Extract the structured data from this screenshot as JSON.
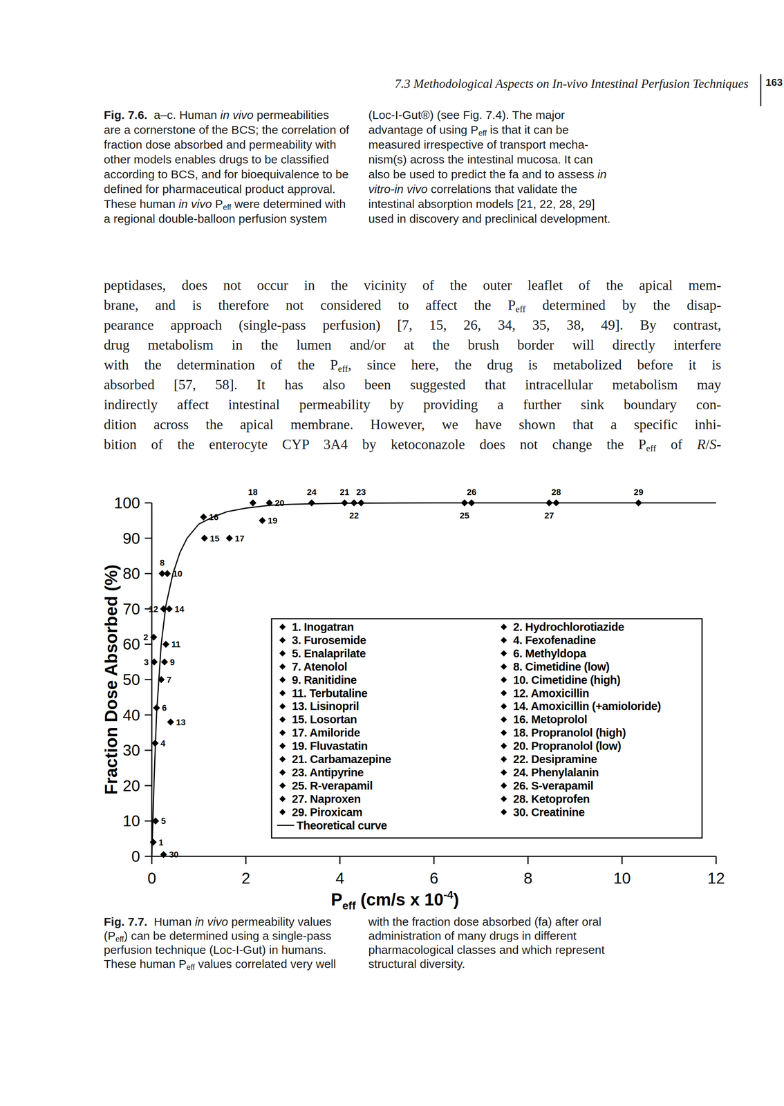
{
  "header": {
    "title": "7.3 Methodological Aspects on In-vivo Intestinal Perfusion Techniques",
    "page": "163"
  },
  "fig_7_6_caption": {
    "left": [
      [
        {
          "b": "Fig. 7.6."
        },
        "  a–c. Human ",
        {
          "i": "in vivo"
        },
        " permeabilities"
      ],
      [
        "are a cornerstone of the BCS; the correlation of"
      ],
      [
        "fraction dose absorbed and permeability with"
      ],
      [
        "other models enables drugs to be classified"
      ],
      [
        "according to BCS, and for bioequivalence to be"
      ],
      [
        "defined for pharmaceutical product approval."
      ],
      [
        "These human ",
        {
          "i": "in vivo"
        },
        " P",
        {
          "sub": "eff"
        },
        " were determined with"
      ],
      [
        "a regional double-balloon perfusion system"
      ]
    ],
    "right": [
      [
        "(Loc-I-Gut®) (see Fig. 7.4). The major"
      ],
      [
        "advantage of using P",
        {
          "sub": "eff"
        },
        " is that it can be"
      ],
      [
        "measured irrespective of transport mecha-"
      ],
      [
        "nism(s) across the intestinal mucosa. It can"
      ],
      [
        "also be used to predict the fa and to assess ",
        {
          "i": "in"
        }
      ],
      [
        {
          "i": "vitro-in vivo"
        },
        " correlations that validate the"
      ],
      [
        "intestinal absorption models [21, 22, 28, 29]"
      ],
      [
        "used in discovery and preclinical development."
      ]
    ]
  },
  "body": [
    [
      "peptidases, does not occur in the vicinity of the outer leaflet of the apical mem-"
    ],
    [
      "brane, and is therefore not considered to affect the P",
      {
        "sub": "eff"
      },
      " determined by the disap-"
    ],
    [
      "pearance approach (single-pass perfusion) [7, 15, 26, 34, 35, 38, 49]. By contrast,"
    ],
    [
      "drug metabolism in the lumen and/or at the brush border will directly interfere"
    ],
    [
      "with the determination of the P",
      {
        "sub": "eff"
      },
      ", since here, the drug is metabolized before it is"
    ],
    [
      "absorbed [57, 58]. It has also been suggested that intracellular metabolism may"
    ],
    [
      "indirectly affect intestinal permeability by providing a further sink boundary con-"
    ],
    [
      "dition across the apical membrane. However, we have shown that a specific inhi-"
    ],
    [
      "bition of the enterocyte CYP 3A4 by ketoconazole does not change the P",
      {
        "sub": "eff"
      },
      " of ",
      {
        "i": "R"
      },
      "/",
      {
        "i": "S"
      },
      "-"
    ]
  ],
  "chart_data": {
    "type": "scatter",
    "x_label_parts": [
      "P",
      "eff",
      " (cm/s x 10",
      "-4",
      ")"
    ],
    "y_label": "Fraction Dose Absorbed (%)",
    "xlim": [
      0,
      12
    ],
    "xticks": [
      0,
      2,
      4,
      6,
      8,
      10,
      12
    ],
    "ylim": [
      0,
      100
    ],
    "yticks": [
      0,
      10,
      20,
      30,
      40,
      50,
      60,
      70,
      80,
      90,
      100
    ],
    "grid": false,
    "legend": "inside",
    "series": [
      {
        "name": "1. Inogatran",
        "label": "1",
        "x": [
          0.03
        ],
        "values": [
          4
        ],
        "marker": "diamond",
        "color": "#000000"
      },
      {
        "name": "2. Hydrochlorotiazide",
        "label": "2",
        "x": [
          0.04
        ],
        "values": [
          62
        ],
        "marker": "diamond",
        "color": "#000000"
      },
      {
        "name": "3. Furosemide",
        "label": "3",
        "x": [
          0.05
        ],
        "values": [
          55
        ],
        "marker": "diamond",
        "color": "#000000"
      },
      {
        "name": "4. Fexofenadine",
        "label": "4",
        "x": [
          0.07
        ],
        "values": [
          32
        ],
        "marker": "diamond",
        "color": "#000000"
      },
      {
        "name": "5. Enalaprilate",
        "label": "5",
        "x": [
          0.08
        ],
        "values": [
          10
        ],
        "marker": "diamond",
        "color": "#000000"
      },
      {
        "name": "6. Methyldopa",
        "label": "6",
        "x": [
          0.1
        ],
        "values": [
          42
        ],
        "marker": "diamond",
        "color": "#000000"
      },
      {
        "name": "7. Atenolol",
        "label": "7",
        "x": [
          0.2
        ],
        "values": [
          50
        ],
        "marker": "diamond",
        "color": "#000000"
      },
      {
        "name": "8. Cimetidine (low)",
        "label": "8",
        "x": [
          0.22
        ],
        "values": [
          80
        ],
        "marker": "diamond",
        "color": "#000000"
      },
      {
        "name": "9. Ranitidine",
        "label": "9",
        "x": [
          0.27
        ],
        "values": [
          55
        ],
        "marker": "diamond",
        "color": "#000000"
      },
      {
        "name": "10. Cimetidine (high)",
        "label": "10",
        "x": [
          0.33
        ],
        "values": [
          80
        ],
        "marker": "diamond",
        "color": "#000000"
      },
      {
        "name": "11. Terbutaline",
        "label": "11",
        "x": [
          0.3
        ],
        "values": [
          60
        ],
        "marker": "diamond",
        "color": "#000000"
      },
      {
        "name": "12. Amoxicillin",
        "label": "12",
        "x": [
          0.25
        ],
        "values": [
          70
        ],
        "marker": "diamond",
        "color": "#000000"
      },
      {
        "name": "13. Lisinopril",
        "label": "13",
        "x": [
          0.4
        ],
        "values": [
          38
        ],
        "marker": "diamond",
        "color": "#000000"
      },
      {
        "name": "14. Amoxicillin (+amioloride)",
        "label": "14",
        "x": [
          0.37
        ],
        "values": [
          70
        ],
        "marker": "diamond",
        "color": "#000000"
      },
      {
        "name": "15. Losortan",
        "label": "15",
        "x": [
          1.12
        ],
        "values": [
          90
        ],
        "marker": "diamond",
        "color": "#000000"
      },
      {
        "name": "16. Metoprolol",
        "label": "16",
        "x": [
          1.1
        ],
        "values": [
          96
        ],
        "marker": "diamond",
        "color": "#000000"
      },
      {
        "name": "17. Amiloride",
        "label": "17",
        "x": [
          1.65
        ],
        "values": [
          90
        ],
        "marker": "diamond",
        "color": "#000000"
      },
      {
        "name": "18. Propranolol (high)",
        "label": "18",
        "x": [
          2.15
        ],
        "values": [
          100
        ],
        "marker": "diamond",
        "color": "#000000"
      },
      {
        "name": "19. Fluvastatin",
        "label": "19",
        "x": [
          2.35
        ],
        "values": [
          95
        ],
        "marker": "diamond",
        "color": "#000000"
      },
      {
        "name": "20. Propranolol (low)",
        "label": "20",
        "x": [
          2.5
        ],
        "values": [
          100
        ],
        "marker": "diamond",
        "color": "#000000"
      },
      {
        "name": "21. Carbamazepine",
        "label": "21",
        "x": [
          4.1
        ],
        "values": [
          100
        ],
        "marker": "diamond",
        "color": "#000000"
      },
      {
        "name": "22. Desipramine",
        "label": "22",
        "x": [
          4.3
        ],
        "values": [
          100
        ],
        "marker": "diamond",
        "color": "#000000"
      },
      {
        "name": "23. Antipyrine",
        "label": "23",
        "x": [
          4.45
        ],
        "values": [
          100
        ],
        "marker": "diamond",
        "color": "#000000"
      },
      {
        "name": "24. Phenylalanin",
        "label": "24",
        "x": [
          3.4
        ],
        "values": [
          100
        ],
        "marker": "diamond",
        "color": "#000000"
      },
      {
        "name": "25. R-verapamil",
        "label": "25",
        "x": [
          6.65
        ],
        "values": [
          100
        ],
        "marker": "diamond",
        "color": "#000000"
      },
      {
        "name": "26. S-verapamil",
        "label": "26",
        "x": [
          6.8
        ],
        "values": [
          100
        ],
        "marker": "diamond",
        "color": "#000000"
      },
      {
        "name": "27. Naproxen",
        "label": "27",
        "x": [
          8.45
        ],
        "values": [
          100
        ],
        "marker": "diamond",
        "color": "#000000"
      },
      {
        "name": "28. Ketoprofen",
        "label": "28",
        "x": [
          8.6
        ],
        "values": [
          100
        ],
        "marker": "diamond",
        "color": "#000000"
      },
      {
        "name": "29. Piroxicam",
        "label": "29",
        "x": [
          10.35
        ],
        "values": [
          100
        ],
        "marker": "diamond",
        "color": "#000000"
      },
      {
        "name": "30. Creatinine",
        "label": "30",
        "x": [
          0.25
        ],
        "values": [
          0.5
        ],
        "marker": "diamond",
        "color": "#000000"
      },
      {
        "name": "Theoretical curve",
        "type": "line",
        "line_style": "solid",
        "color": "#000000",
        "x": [
          0,
          0.05,
          0.1,
          0.2,
          0.3,
          0.45,
          0.6,
          0.75,
          1.0,
          1.3,
          1.6,
          2.0,
          2.5,
          3.0,
          4.0,
          6.0,
          8.0,
          10.0,
          12.0
        ],
        "values": [
          0,
          22,
          40,
          60,
          71,
          80,
          86,
          90,
          94,
          96,
          97.5,
          98.5,
          99.3,
          99.6,
          99.9,
          100,
          100,
          100,
          100
        ]
      }
    ]
  },
  "fig_7_7_caption": {
    "left": [
      [
        {
          "b": "Fig. 7.7."
        },
        "  Human ",
        {
          "i": "in vivo"
        },
        " permeability values"
      ],
      [
        "(P",
        {
          "sub": "eff"
        },
        ") can be determined using a single-pass"
      ],
      [
        "perfusion technique (Loc-I-Gut) in humans."
      ],
      [
        "These human P",
        {
          "sub": "eff"
        },
        " values correlated very well"
      ]
    ],
    "right": [
      [
        "with the fraction dose absorbed (fa) after oral"
      ],
      [
        "administration of many drugs in different"
      ],
      [
        "pharmacological classes and which represent"
      ],
      [
        "structural diversity."
      ]
    ]
  }
}
